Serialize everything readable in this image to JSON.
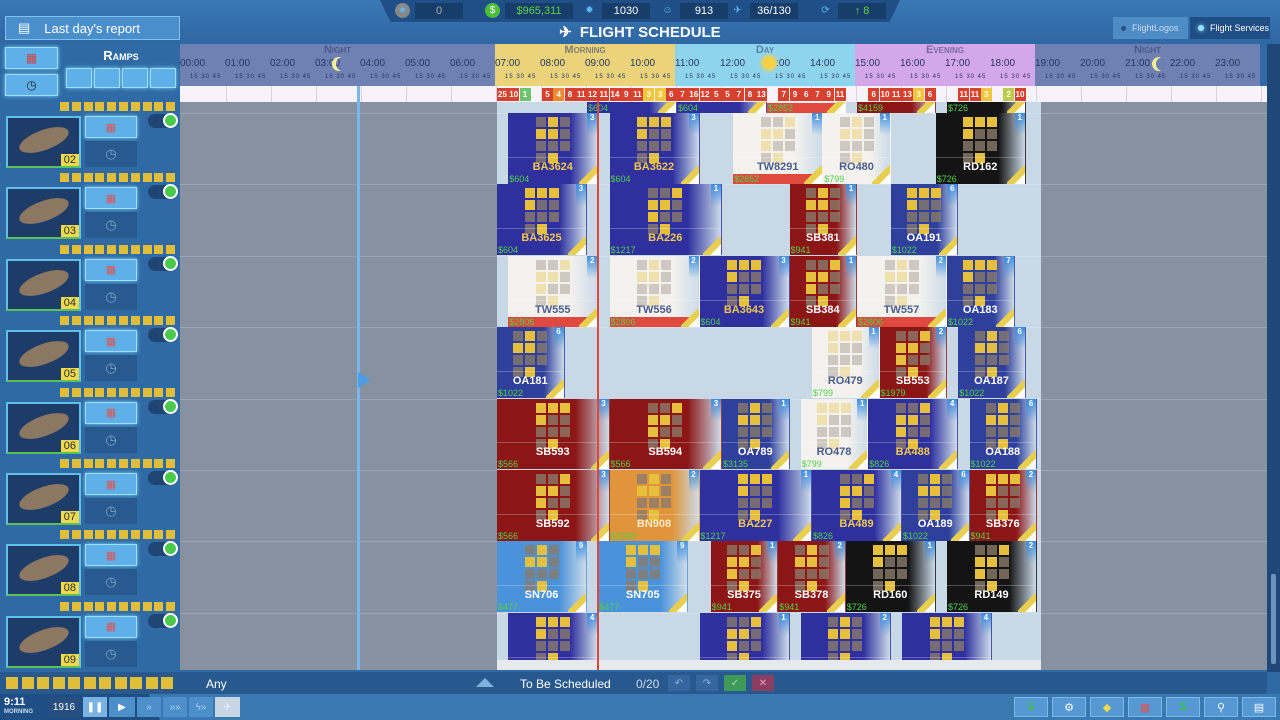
{
  "header": {
    "report_button": "Last day's report",
    "title": "FLIGHT SCHEDULE",
    "stats": [
      {
        "icon": "star-icon",
        "value": "0",
        "color": "#aaaaaa"
      },
      {
        "icon": "money-icon",
        "value": "$965,311",
        "color": "#5fd14a"
      },
      {
        "icon": "gear-icon",
        "value": "1030",
        "color": "#ffffff"
      },
      {
        "icon": "people-icon",
        "value": "913",
        "color": "#ffffff"
      },
      {
        "icon": "plane-icon",
        "value": "36/130",
        "color": "#ffffff"
      },
      {
        "icon": "route-icon",
        "value": "↑ 8",
        "color": "#5fd14a"
      }
    ],
    "tabs": [
      {
        "label": "FlightLogos",
        "active": false
      },
      {
        "label": "Flight Services",
        "active": true
      }
    ]
  },
  "timeline": {
    "periods": [
      {
        "label": "Night",
        "start": 0,
        "end": 7,
        "color": "#6f80b2"
      },
      {
        "label": "Morning",
        "start": 7,
        "end": 11,
        "color": "#ead37a"
      },
      {
        "label": "Day",
        "start": 11,
        "end": 15,
        "color": "#8fd4ef"
      },
      {
        "label": "Evening",
        "start": 15,
        "end": 19,
        "color": "#d4a7ea"
      },
      {
        "label": "Night",
        "start": 19,
        "end": 24,
        "color": "#6f80b2"
      }
    ],
    "hours": [
      "00:00",
      "01:00",
      "02:00",
      "03:00",
      "04:00",
      "05:00",
      "06:00",
      "07:00",
      "08:00",
      "09:00",
      "10:00",
      "11:00",
      "12:00",
      "13:00",
      "14:00",
      "15:00",
      "16:00",
      "17:00",
      "18:00",
      "19:00",
      "20:00",
      "21:00",
      "22:00",
      "23:00"
    ],
    "minute_ticks": "15 30 45",
    "slot_counts": [
      {
        "t": "07:00",
        "n": "25",
        "c": "#d9412f"
      },
      {
        "t": "07:15",
        "n": "10",
        "c": "#d9412f"
      },
      {
        "t": "07:30",
        "n": "1",
        "c": "#6cc56c"
      },
      {
        "t": "08:00",
        "n": "5",
        "c": "#d9412f"
      },
      {
        "t": "08:15",
        "n": "4",
        "c": "#ec8a2d"
      },
      {
        "t": "08:30",
        "n": "8",
        "c": "#d9412f"
      },
      {
        "t": "08:45",
        "n": "11",
        "c": "#d9412f"
      },
      {
        "t": "09:00",
        "n": "12",
        "c": "#d9412f"
      },
      {
        "t": "09:15",
        "n": "11",
        "c": "#d9412f"
      },
      {
        "t": "09:30",
        "n": "14",
        "c": "#d9412f"
      },
      {
        "t": "09:45",
        "n": "9",
        "c": "#d9412f"
      },
      {
        "t": "10:00",
        "n": "11",
        "c": "#d9412f"
      },
      {
        "t": "10:15",
        "n": "3",
        "c": "#f2c53a"
      },
      {
        "t": "10:30",
        "n": "3",
        "c": "#f2c53a"
      },
      {
        "t": "10:45",
        "n": "6",
        "c": "#d9412f"
      },
      {
        "t": "11:00",
        "n": "7",
        "c": "#d9412f"
      },
      {
        "t": "11:15",
        "n": "16",
        "c": "#d9412f"
      },
      {
        "t": "11:30",
        "n": "12",
        "c": "#d9412f"
      },
      {
        "t": "11:45",
        "n": "5",
        "c": "#d9412f"
      },
      {
        "t": "12:00",
        "n": "5",
        "c": "#d9412f"
      },
      {
        "t": "12:15",
        "n": "7",
        "c": "#d9412f"
      },
      {
        "t": "12:30",
        "n": "8",
        "c": "#d9412f"
      },
      {
        "t": "12:45",
        "n": "13",
        "c": "#d9412f"
      },
      {
        "t": "13:15",
        "n": "7",
        "c": "#d9412f"
      },
      {
        "t": "13:30",
        "n": "9",
        "c": "#d9412f"
      },
      {
        "t": "13:45",
        "n": "6",
        "c": "#d9412f"
      },
      {
        "t": "14:00",
        "n": "7",
        "c": "#d9412f"
      },
      {
        "t": "14:15",
        "n": "9",
        "c": "#d9412f"
      },
      {
        "t": "14:30",
        "n": "11",
        "c": "#d9412f"
      },
      {
        "t": "15:15",
        "n": "6",
        "c": "#d9412f"
      },
      {
        "t": "15:30",
        "n": "10",
        "c": "#d9412f"
      },
      {
        "t": "15:45",
        "n": "11",
        "c": "#d9412f"
      },
      {
        "t": "16:00",
        "n": "13",
        "c": "#d9412f"
      },
      {
        "t": "16:15",
        "n": "3",
        "c": "#f2c53a"
      },
      {
        "t": "16:30",
        "n": "6",
        "c": "#d9412f"
      },
      {
        "t": "17:15",
        "n": "11",
        "c": "#d9412f"
      },
      {
        "t": "17:30",
        "n": "11",
        "c": "#d9412f"
      },
      {
        "t": "17:45",
        "n": "3",
        "c": "#f2c53a"
      },
      {
        "t": "18:15",
        "n": "2",
        "c": "#bccb4a"
      },
      {
        "t": "18:30",
        "n": "10",
        "c": "#d9412f"
      }
    ],
    "current_time": "09:11"
  },
  "airline_styles": {
    "BA": {
      "bg": "#2f2f9e",
      "fg": "#f0c850"
    },
    "SB": {
      "bg": "#8c1616",
      "fg": "#ffffff"
    },
    "TW": {
      "bg": "#f4f2ee",
      "fg": "#4a5d8c"
    },
    "RO": {
      "bg": "#f4f2ee",
      "fg": "#4a5d8c"
    },
    "RD": {
      "bg": "#141414",
      "fg": "#ffffff"
    },
    "OA": {
      "bg": "#2e3f9c",
      "fg": "#ffffff"
    },
    "SN": {
      "bg": "#4a92da",
      "fg": "#ffffff"
    },
    "BN": {
      "bg": "#e0953c",
      "fg": "#fbe9c8"
    }
  },
  "left_panel": {
    "title": "Ramps"
  },
  "top_partial_row": [
    {
      "airline": "BA",
      "price": "$604",
      "start": "09:00",
      "end": "11:00"
    },
    {
      "airline": "BA",
      "price": "$604",
      "start": "11:00",
      "end": "13:00"
    },
    {
      "airline": "TW",
      "price": "$2852",
      "start": "13:00",
      "end": "14:45"
    },
    {
      "airline": "SB",
      "price": "$4159",
      "start": "15:00",
      "end": "16:45"
    },
    {
      "airline": "RD",
      "price": "$726",
      "start": "17:00",
      "end": "18:45"
    }
  ],
  "ramps": [
    {
      "id": "02",
      "enabled": true,
      "flights": [
        {
          "flight": "BA3624",
          "airline": "BA",
          "price": "$604",
          "badge": "3",
          "start": "07:15",
          "end": "09:15"
        },
        {
          "flight": "BA3622",
          "airline": "BA",
          "price": "$604",
          "badge": "3",
          "start": "09:30",
          "end": "11:30"
        },
        {
          "flight": "TW8291",
          "airline": "TW",
          "price": "$2852",
          "badge": "1",
          "start": "12:15",
          "end": "14:15"
        },
        {
          "flight": "RO480",
          "airline": "RO",
          "price": "$799",
          "badge": "1",
          "start": "14:15",
          "end": "15:45"
        },
        {
          "flight": "RD162",
          "airline": "RD",
          "price": "$726",
          "badge": "1",
          "start": "16:45",
          "end": "18:45"
        }
      ]
    },
    {
      "id": "03",
      "enabled": true,
      "flights": [
        {
          "flight": "BA3625",
          "airline": "BA",
          "price": "$604",
          "badge": "3",
          "start": "07:00",
          "end": "09:00"
        },
        {
          "flight": "BA226",
          "airline": "BA",
          "price": "$1217",
          "badge": "1",
          "start": "09:30",
          "end": "12:00"
        },
        {
          "flight": "SB381",
          "airline": "SB",
          "price": "$941",
          "badge": "1",
          "start": "13:30",
          "end": "15:00"
        },
        {
          "flight": "OA191",
          "airline": "OA",
          "price": "$1022",
          "badge": "6",
          "start": "15:45",
          "end": "17:15"
        }
      ]
    },
    {
      "id": "04",
      "enabled": true,
      "flights": [
        {
          "flight": "TW555",
          "airline": "TW",
          "price": "$2806",
          "badge": "2",
          "start": "07:15",
          "end": "09:15"
        },
        {
          "flight": "TW556",
          "airline": "TW",
          "price": "$2806",
          "badge": "2",
          "start": "09:30",
          "end": "11:30"
        },
        {
          "flight": "BA3643",
          "airline": "BA",
          "price": "$604",
          "badge": "3",
          "start": "11:30",
          "end": "13:30"
        },
        {
          "flight": "SB384",
          "airline": "SB",
          "price": "$941",
          "badge": "1",
          "start": "13:30",
          "end": "15:00"
        },
        {
          "flight": "TW557",
          "airline": "TW",
          "price": "$2806",
          "badge": "2",
          "start": "15:00",
          "end": "17:00"
        },
        {
          "flight": "OA183",
          "airline": "OA",
          "price": "$1022",
          "badge": "7",
          "start": "17:00",
          "end": "18:30"
        }
      ]
    },
    {
      "id": "05",
      "enabled": true,
      "flights": [
        {
          "flight": "OA181",
          "airline": "OA",
          "price": "$1022",
          "badge": "6",
          "start": "07:00",
          "end": "08:30"
        },
        {
          "flight": "RO479",
          "airline": "RO",
          "price": "$799",
          "badge": "1",
          "start": "14:00",
          "end": "15:30"
        },
        {
          "flight": "SB553",
          "airline": "SB",
          "price": "$1979",
          "badge": "2",
          "start": "15:30",
          "end": "17:00"
        },
        {
          "flight": "OA187",
          "airline": "OA",
          "price": "$1022",
          "badge": "6",
          "start": "17:15",
          "end": "18:45"
        }
      ]
    },
    {
      "id": "06",
      "enabled": true,
      "flights": [
        {
          "flight": "SB593",
          "airline": "SB",
          "price": "$566",
          "badge": "3",
          "start": "07:00",
          "end": "09:30"
        },
        {
          "flight": "SB594",
          "airline": "SB",
          "price": "$566",
          "badge": "3",
          "start": "09:30",
          "end": "12:00"
        },
        {
          "flight": "OA789",
          "airline": "OA",
          "price": "$3135",
          "badge": "1",
          "start": "12:00",
          "end": "13:30"
        },
        {
          "flight": "RO478",
          "airline": "RO",
          "price": "$799",
          "badge": "1",
          "start": "13:45",
          "end": "15:15"
        },
        {
          "flight": "BA488",
          "airline": "BA",
          "price": "$826",
          "badge": "4",
          "start": "15:15",
          "end": "17:15"
        },
        {
          "flight": "OA188",
          "airline": "OA",
          "price": "$1022",
          "badge": "6",
          "start": "17:30",
          "end": "19:00"
        }
      ]
    },
    {
      "id": "07",
      "enabled": true,
      "flights": [
        {
          "flight": "SB592",
          "airline": "SB",
          "price": "$566",
          "badge": "3",
          "start": "07:00",
          "end": "09:30"
        },
        {
          "flight": "BN908",
          "airline": "BN",
          "price": "$1308",
          "badge": "2",
          "start": "09:30",
          "end": "11:30"
        },
        {
          "flight": "BA227",
          "airline": "BA",
          "price": "$1217",
          "badge": "1",
          "start": "11:30",
          "end": "14:00"
        },
        {
          "flight": "BA489",
          "airline": "BA",
          "price": "$826",
          "badge": "4",
          "start": "14:00",
          "end": "16:00"
        },
        {
          "flight": "OA189",
          "airline": "OA",
          "price": "$1022",
          "badge": "6",
          "start": "16:00",
          "end": "17:30"
        },
        {
          "flight": "SB376",
          "airline": "SB",
          "price": "$941",
          "badge": "2",
          "start": "17:30",
          "end": "19:00"
        }
      ]
    },
    {
      "id": "08",
      "enabled": true,
      "flights": [
        {
          "flight": "SN706",
          "airline": "SN",
          "price": "$477",
          "badge": "9",
          "start": "07:00",
          "end": "09:00"
        },
        {
          "flight": "SN705",
          "airline": "SN",
          "price": "$477",
          "badge": "9",
          "start": "09:15",
          "end": "11:15"
        },
        {
          "flight": "SB375",
          "airline": "SB",
          "price": "$941",
          "badge": "1",
          "start": "11:45",
          "end": "13:15"
        },
        {
          "flight": "SB378",
          "airline": "SB",
          "price": "$941",
          "badge": "2",
          "start": "13:15",
          "end": "14:45"
        },
        {
          "flight": "RD160",
          "airline": "RD",
          "price": "$726",
          "badge": "1",
          "start": "14:45",
          "end": "16:45"
        },
        {
          "flight": "RD149",
          "airline": "RD",
          "price": "$726",
          "badge": "2",
          "start": "17:00",
          "end": "19:00"
        }
      ]
    },
    {
      "id": "09",
      "enabled": true,
      "flights": [
        {
          "flight": "",
          "airline": "BA",
          "price": "",
          "badge": "4",
          "start": "07:15",
          "end": "09:15"
        },
        {
          "flight": "",
          "airline": "BA",
          "price": "",
          "badge": "1",
          "start": "11:30",
          "end": "13:30"
        },
        {
          "flight": "",
          "airline": "BA",
          "price": "",
          "badge": "2",
          "start": "13:45",
          "end": "15:45"
        },
        {
          "flight": "",
          "airline": "BA",
          "price": "",
          "badge": "4",
          "start": "16:00",
          "end": "18:00"
        }
      ]
    }
  ],
  "filter_bar": {
    "filter_value": "Any",
    "queue_label": "To Be Scheduled",
    "queue_count": "0/20"
  },
  "bottom_bar": {
    "time": "9:11",
    "period": "MORNING",
    "year": "1916"
  }
}
